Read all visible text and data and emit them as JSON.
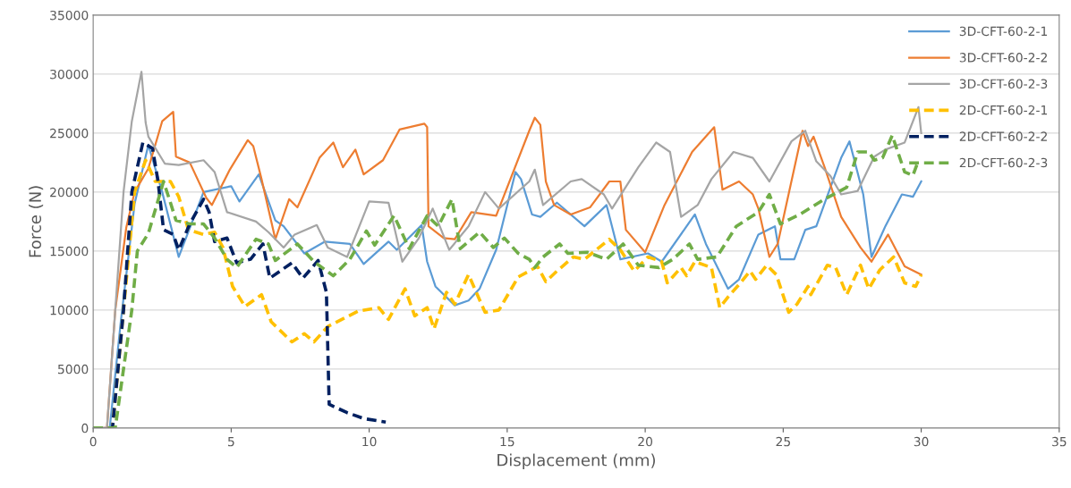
{
  "chart_data": {
    "type": "line",
    "xlabel": "Displacement (mm)",
    "ylabel": "Force (N)",
    "xlim": [
      0,
      35
    ],
    "xticks": [
      0,
      5,
      10,
      15,
      20,
      25,
      30,
      35
    ],
    "ylim": [
      0,
      35000
    ],
    "yticks": [
      0,
      5000,
      10000,
      15000,
      20000,
      25000,
      30000,
      35000
    ],
    "grid": "y",
    "legend": "top right",
    "marker": "none",
    "series": [
      {
        "name": "3D-CFT-60-2-1",
        "color": "#5b9bd5",
        "line_style": "solid",
        "x": [
          0,
          0.6,
          1.0,
          1.5,
          2.0,
          2.5,
          3.1,
          4.0,
          5.0,
          5.3,
          6.0,
          6.6,
          6.9,
          7.65,
          8.4,
          9.3,
          9.8,
          10.7,
          11.0,
          11.9,
          12.1,
          12.4,
          13.1,
          13.6,
          14.0,
          14.6,
          15.3,
          15.5,
          15.9,
          16.2,
          16.8,
          17.8,
          18.6,
          19.1,
          20.1,
          20.6,
          21.8,
          22.2,
          23.0,
          23.4,
          24.1,
          24.7,
          24.9,
          25.4,
          25.8,
          26.2,
          27.1,
          27.4,
          27.9,
          28.2,
          28.7,
          29.3,
          29.7,
          30.0
        ],
        "values": [
          0,
          0,
          9000,
          19000,
          24000,
          20000,
          14500,
          20000,
          20500,
          19200,
          21500,
          17600,
          17100,
          14800,
          15800,
          15600,
          13900,
          15800,
          15100,
          17200,
          14100,
          12000,
          10400,
          10800,
          11800,
          15100,
          21700,
          21100,
          18100,
          17900,
          19100,
          17100,
          18900,
          14300,
          14800,
          14100,
          18100,
          15600,
          11800,
          12600,
          16400,
          17100,
          14300,
          14300,
          16800,
          17100,
          22900,
          24300,
          19800,
          14500,
          17100,
          19800,
          19600,
          20900
        ]
      },
      {
        "name": "3D-CFT-60-2-2",
        "color": "#ed7d31",
        "line_style": "solid",
        "x": [
          0,
          0.5,
          0.8,
          1.2,
          1.5,
          2.0,
          2.5,
          2.9,
          3.0,
          3.5,
          4.1,
          4.3,
          4.95,
          5.6,
          5.8,
          6.1,
          6.6,
          7.1,
          7.4,
          8.2,
          8.7,
          9.05,
          9.5,
          9.8,
          10.5,
          11.1,
          12.0,
          12.1,
          12.15,
          12.7,
          13.1,
          13.7,
          14.6,
          15.8,
          16.0,
          16.2,
          16.4,
          16.7,
          17.3,
          18.0,
          18.7,
          19.1,
          19.3,
          20.0,
          20.7,
          21.7,
          22.5,
          22.8,
          23.4,
          23.9,
          24.1,
          24.5,
          24.8,
          25.7,
          25.9,
          26.1,
          26.5,
          27.1,
          27.8,
          28.2,
          28.8,
          29.4,
          30.0
        ],
        "values": [
          0,
          0,
          10000,
          17000,
          20000,
          22000,
          26000,
          26800,
          23000,
          22500,
          19500,
          18900,
          21900,
          24400,
          23900,
          21100,
          16000,
          19400,
          18700,
          22900,
          24200,
          22100,
          23600,
          21500,
          22700,
          25300,
          25800,
          25500,
          17100,
          16100,
          16000,
          18300,
          18000,
          25200,
          26300,
          25700,
          20900,
          18900,
          18100,
          18700,
          20900,
          20900,
          16800,
          14900,
          18900,
          23400,
          25500,
          20200,
          20900,
          19800,
          18600,
          14500,
          15600,
          25200,
          23900,
          24700,
          22100,
          17900,
          15300,
          14100,
          16400,
          13700,
          13000
        ]
      },
      {
        "name": "3D-CFT-60-2-3",
        "color": "#a5a5a5",
        "line_style": "solid",
        "x": [
          0,
          0.5,
          0.8,
          1.1,
          1.4,
          1.75,
          1.9,
          2.0,
          2.6,
          3.1,
          4.0,
          4.4,
          4.85,
          5.9,
          6.35,
          6.9,
          7.3,
          8.1,
          8.5,
          9.2,
          10.0,
          10.7,
          11.2,
          11.8,
          12.3,
          12.9,
          13.6,
          14.2,
          14.7,
          15.8,
          16.0,
          16.3,
          17.3,
          17.7,
          18.5,
          18.8,
          19.75,
          20.4,
          20.9,
          21.3,
          21.9,
          22.4,
          23.2,
          23.9,
          24.5,
          25.3,
          25.8,
          26.2,
          26.7,
          27.1,
          27.7,
          28.3,
          28.7,
          29.4,
          29.9,
          30.0
        ],
        "values": [
          0,
          0,
          10000,
          20000,
          26000,
          30200,
          25900,
          24700,
          22400,
          22300,
          22700,
          21700,
          18300,
          17500,
          16600,
          15300,
          16400,
          17200,
          15300,
          14500,
          19200,
          19100,
          14100,
          16100,
          18600,
          15100,
          17100,
          20000,
          18600,
          20900,
          21900,
          18900,
          20900,
          21100,
          19800,
          18600,
          22100,
          24200,
          23400,
          17900,
          18900,
          21100,
          23400,
          22900,
          20900,
          24300,
          25200,
          22600,
          21400,
          19800,
          20100,
          23000,
          23600,
          24200,
          27200,
          25000
        ]
      },
      {
        "name": "2D-CFT-60-2-1",
        "color": "#ffc000",
        "line_style": "dashed",
        "x": [
          0,
          0.7,
          1.1,
          1.5,
          1.9,
          2.25,
          2.8,
          3.1,
          3.45,
          4.0,
          4.4,
          4.7,
          5.05,
          5.5,
          6.1,
          6.45,
          7.2,
          7.65,
          8.0,
          8.5,
          9.6,
          10.35,
          10.7,
          11.3,
          11.65,
          12.1,
          12.35,
          12.8,
          13.1,
          13.6,
          14.2,
          14.7,
          15.4,
          16.1,
          16.4,
          16.8,
          17.4,
          17.8,
          18.7,
          19.1,
          19.6,
          20.1,
          20.6,
          20.8,
          21.3,
          21.5,
          21.8,
          22.4,
          22.7,
          23.0,
          23.45,
          23.8,
          24.0,
          24.4,
          24.75,
          25.2,
          25.5,
          25.9,
          26.0,
          26.6,
          26.9,
          27.3,
          27.8,
          28.1,
          28.5,
          29.0,
          29.4,
          29.8,
          30.0
        ],
        "values": [
          0,
          0,
          10000,
          20000,
          22700,
          20900,
          20900,
          19600,
          16800,
          16400,
          16600,
          15300,
          12000,
          10300,
          11300,
          9000,
          7300,
          8000,
          7300,
          8600,
          9900,
          10200,
          9200,
          11800,
          9500,
          10200,
          8400,
          11500,
          10500,
          13000,
          9800,
          10000,
          12800,
          13700,
          12400,
          13300,
          14500,
          14300,
          16000,
          15100,
          13300,
          14500,
          14100,
          12300,
          13600,
          12900,
          14100,
          13600,
          10200,
          11100,
          12300,
          13300,
          12600,
          13800,
          13000,
          9800,
          10500,
          12000,
          11300,
          13800,
          13600,
          11300,
          13800,
          11800,
          13400,
          14500,
          12300,
          12000,
          13000
        ]
      },
      {
        "name": "2D-CFT-60-2-2",
        "color": "#002060",
        "line_style": "dashed",
        "x": [
          0,
          0.7,
          1.1,
          1.4,
          1.8,
          2.15,
          2.35,
          2.55,
          2.9,
          3.1,
          3.5,
          4.0,
          4.2,
          4.4,
          4.85,
          5.2,
          5.7,
          6.15,
          6.4,
          7.2,
          7.6,
          8.15,
          8.45,
          8.55,
          9.2,
          9.8,
          10.6
        ],
        "values": [
          0,
          0,
          10000,
          20000,
          24200,
          23700,
          20900,
          16800,
          16400,
          15100,
          17300,
          19400,
          18300,
          15800,
          16100,
          14000,
          14300,
          15600,
          12700,
          14000,
          12700,
          14200,
          11500,
          2000,
          1300,
          800,
          500
        ]
      },
      {
        "name": "2D-CFT-60-2-3",
        "color": "#70ad47",
        "line_style": "dashed",
        "x": [
          0,
          0.8,
          1.4,
          1.6,
          2.0,
          2.55,
          2.8,
          3.0,
          3.5,
          4.0,
          4.4,
          4.85,
          5.2,
          5.9,
          6.35,
          6.6,
          7.4,
          8.0,
          8.7,
          9.3,
          9.9,
          10.2,
          10.9,
          11.45,
          12.1,
          12.5,
          13.0,
          13.3,
          14.0,
          14.5,
          14.9,
          15.4,
          15.8,
          16.0,
          16.3,
          16.9,
          17.2,
          17.9,
          18.6,
          19.2,
          19.75,
          20.5,
          21.0,
          21.6,
          21.9,
          22.6,
          23.3,
          24.1,
          24.5,
          24.9,
          25.6,
          26.5,
          27.3,
          27.7,
          28.1,
          28.3,
          28.6,
          28.95,
          29.4,
          29.7,
          29.9
        ],
        "values": [
          0,
          0,
          10000,
          15000,
          16500,
          20900,
          19100,
          17600,
          17300,
          17300,
          16100,
          14300,
          13600,
          16000,
          15600,
          14200,
          15600,
          14100,
          12900,
          14300,
          16700,
          15500,
          18000,
          15200,
          18000,
          17100,
          19400,
          15200,
          16600,
          15300,
          16100,
          14800,
          14300,
          13600,
          14500,
          15600,
          14800,
          14900,
          14300,
          15600,
          13800,
          13600,
          14300,
          15600,
          14300,
          14500,
          17100,
          18300,
          19800,
          17300,
          18100,
          19400,
          20400,
          23400,
          23400,
          22700,
          22900,
          24800,
          21700,
          21400,
          22700
        ]
      }
    ]
  }
}
